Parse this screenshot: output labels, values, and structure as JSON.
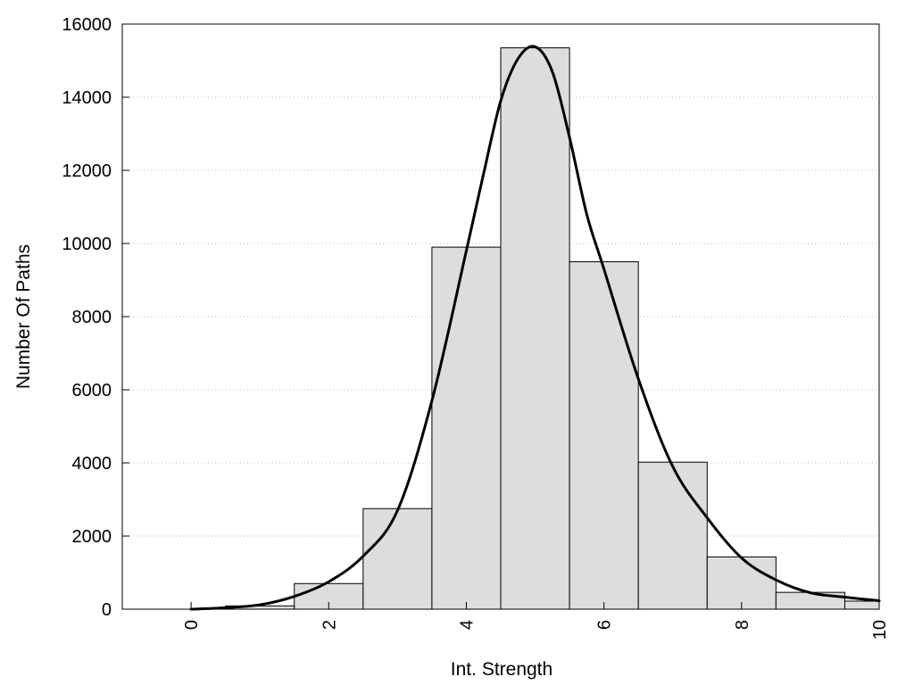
{
  "chart_data": {
    "type": "bar",
    "title": "",
    "xlabel": "Int. Strength",
    "ylabel": "Number Of Paths",
    "xlim": [
      -1,
      10
    ],
    "ylim": [
      0,
      16000
    ],
    "x_ticks": [
      0,
      2,
      4,
      6,
      8,
      10
    ],
    "y_ticks": [
      0,
      2000,
      4000,
      6000,
      8000,
      10000,
      12000,
      14000,
      16000
    ],
    "grid": "horizontal dotted",
    "legend": "none",
    "bar_color": "#dddddd",
    "curve_color": "#000000",
    "bins": [
      {
        "x0": 0,
        "x1": 0.5,
        "value": 20
      },
      {
        "x0": 0.5,
        "x1": 1.5,
        "value": 90
      },
      {
        "x0": 1.5,
        "x1": 2.5,
        "value": 700
      },
      {
        "x0": 2.5,
        "x1": 3.5,
        "value": 2750
      },
      {
        "x0": 3.5,
        "x1": 4.5,
        "value": 9900
      },
      {
        "x0": 4.5,
        "x1": 5.5,
        "value": 15350
      },
      {
        "x0": 5.5,
        "x1": 6.5,
        "value": 9500
      },
      {
        "x0": 6.5,
        "x1": 7.5,
        "value": 4020
      },
      {
        "x0": 7.5,
        "x1": 8.5,
        "value": 1430
      },
      {
        "x0": 8.5,
        "x1": 9.5,
        "value": 460
      },
      {
        "x0": 9.5,
        "x1": 10,
        "value": 220
      }
    ],
    "curve": {
      "x": [
        0,
        0.5,
        1,
        1.5,
        2,
        2.5,
        3,
        3.5,
        4,
        4.25,
        4.5,
        4.75,
        5,
        5.25,
        5.5,
        5.75,
        6,
        6.5,
        7,
        7.5,
        8,
        8.5,
        9,
        9.5,
        10
      ],
      "y": [
        0,
        40,
        120,
        350,
        750,
        1450,
        2700,
        5700,
        9800,
        11900,
        13900,
        15050,
        15380,
        14700,
        12900,
        10800,
        9300,
        6300,
        3900,
        2500,
        1400,
        800,
        450,
        330,
        230
      ]
    }
  }
}
